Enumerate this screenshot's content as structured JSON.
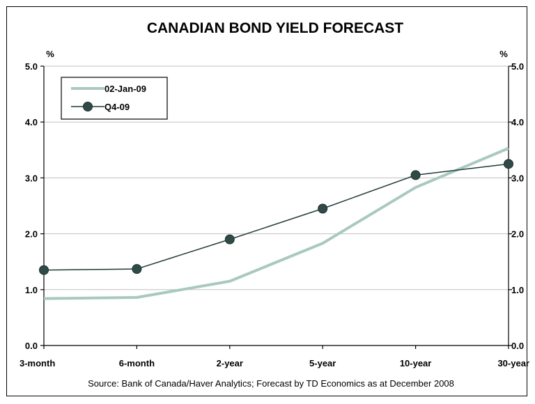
{
  "chart_data": {
    "type": "line",
    "title": "CANADIAN BOND YIELD FORECAST",
    "y_unit_left": "%",
    "y_unit_right": "%",
    "categories": [
      "3-month",
      "6-month",
      "2-year",
      "5-year",
      "10-year",
      "30-year"
    ],
    "ylim": [
      0,
      5
    ],
    "yticks": [
      "0.0",
      "1.0",
      "2.0",
      "3.0",
      "4.0",
      "5.0"
    ],
    "grid": true,
    "legend_position": "top-left",
    "series": [
      {
        "name": "02-Jan-09",
        "values": [
          0.84,
          0.86,
          1.15,
          1.83,
          2.83,
          3.53
        ],
        "color": "#a9c9c0",
        "marker": "none"
      },
      {
        "name": "Q4-09",
        "values": [
          1.35,
          1.37,
          1.9,
          2.45,
          3.05,
          3.25
        ],
        "color": "#1f3b39",
        "marker": "circle"
      }
    ],
    "source": "Source: Bank of Canada/Haver Analytics; Forecast by TD Economics as at December 2008"
  }
}
